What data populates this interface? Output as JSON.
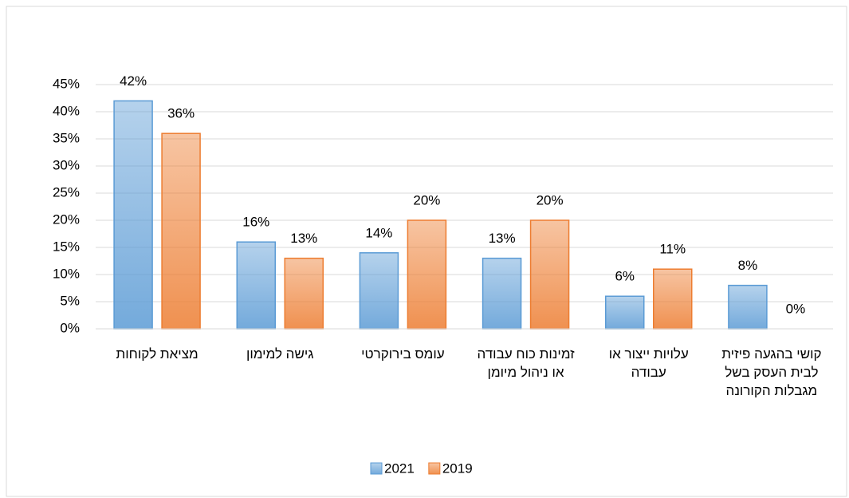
{
  "chart_data": {
    "type": "bar",
    "categories": [
      "מציאת לקוחות",
      "גישה למימון",
      "עומס בירוקרטי",
      "זמינות כוח עבודה או ניהול מיומן",
      "עלויות ייצור או עבודה",
      "קושי בהגעה פיזית לבית העסק בשל מגבלות הקורונה"
    ],
    "series": [
      {
        "name": "2021",
        "color": "#5b9bd5",
        "values": [
          42,
          16,
          14,
          13,
          6,
          8
        ],
        "value_labels": [
          "42%",
          "16%",
          "14%",
          "13%",
          "6%",
          "8%"
        ]
      },
      {
        "name": "2019",
        "color": "#ed7d31",
        "values": [
          36,
          13,
          20,
          20,
          11,
          0
        ],
        "value_labels": [
          "36%",
          "13%",
          "20%",
          "20%",
          "11%",
          "0%"
        ]
      }
    ],
    "ylim": [
      0,
      45
    ],
    "yticks": [
      {
        "value": 0,
        "label": "0%"
      },
      {
        "value": 5,
        "label": "5%"
      },
      {
        "value": 10,
        "label": "10%"
      },
      {
        "value": 15,
        "label": "15%"
      },
      {
        "value": 20,
        "label": "20%"
      },
      {
        "value": 25,
        "label": "25%"
      },
      {
        "value": 30,
        "label": "30%"
      },
      {
        "value": 35,
        "label": "35%"
      },
      {
        "value": 40,
        "label": "40%"
      },
      {
        "value": 45,
        "label": "45%"
      }
    ],
    "grid": true,
    "legend": "bottom"
  }
}
